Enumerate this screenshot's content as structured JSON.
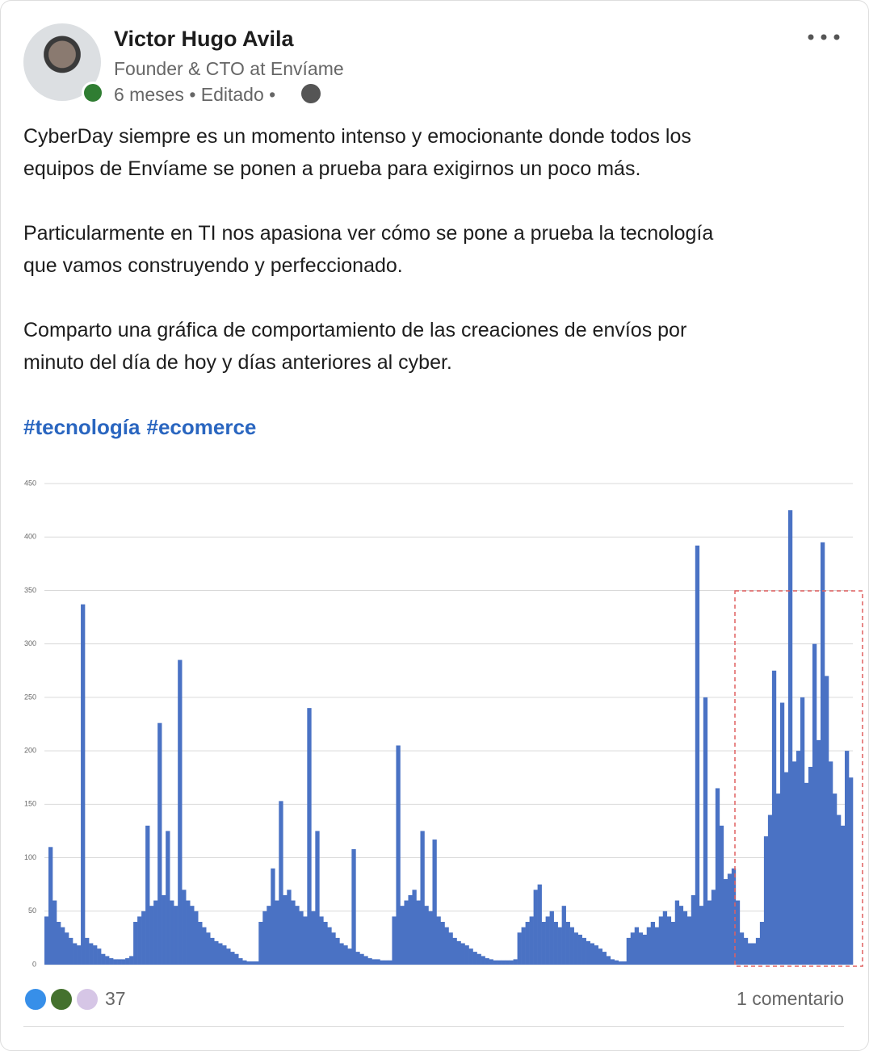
{
  "post": {
    "author": "Victor Hugo Avila",
    "headline": "Founder & CTO at Envíame",
    "meta": "6 meses • Editado •",
    "paragraphs": [
      [
        "CyberDay siempre es un momento intenso y emocionante donde todos los",
        "equipos de Envíame se ponen a prueba para exigirnos un poco más."
      ],
      [
        "Particularmente en TI nos apasiona ver cómo se pone a prueba la tecnología",
        "que vamos construyendo y perfeccionado."
      ],
      [
        "Comparto una gráfica de comportamiento de las creaciones de envíos por",
        "minuto del día de hoy y días anteriores al cyber."
      ]
    ],
    "hashtags": [
      "#tecnología",
      "#ecomerce"
    ],
    "reactions": "37",
    "comments": "1 comentario"
  },
  "chart_data": {
    "type": "bar",
    "color": "#4a72c4",
    "grid": true,
    "ylim": [
      0,
      450
    ],
    "yticks": [
      0,
      50,
      100,
      150,
      200,
      250,
      300,
      350,
      400,
      450
    ],
    "values": [
      45,
      110,
      60,
      40,
      35,
      30,
      25,
      20,
      18,
      337,
      25,
      20,
      18,
      15,
      10,
      8,
      6,
      5,
      5,
      5,
      6,
      8,
      40,
      45,
      50,
      130,
      55,
      60,
      226,
      65,
      125,
      60,
      55,
      285,
      70,
      60,
      55,
      50,
      40,
      35,
      30,
      25,
      22,
      20,
      18,
      15,
      12,
      10,
      6,
      4,
      3,
      3,
      3,
      40,
      50,
      55,
      90,
      60,
      153,
      65,
      70,
      60,
      55,
      50,
      45,
      240,
      50,
      125,
      45,
      40,
      35,
      30,
      25,
      20,
      18,
      15,
      108,
      12,
      10,
      8,
      6,
      5,
      5,
      4,
      4,
      4,
      45,
      205,
      55,
      60,
      65,
      70,
      60,
      125,
      55,
      50,
      117,
      45,
      40,
      35,
      30,
      25,
      22,
      20,
      18,
      15,
      12,
      10,
      8,
      6,
      5,
      4,
      4,
      4,
      4,
      4,
      5,
      30,
      35,
      40,
      45,
      70,
      75,
      40,
      45,
      50,
      40,
      35,
      55,
      40,
      35,
      30,
      28,
      25,
      22,
      20,
      18,
      15,
      12,
      8,
      5,
      4,
      3,
      3,
      25,
      30,
      35,
      30,
      28,
      35,
      40,
      35,
      45,
      50,
      45,
      40,
      60,
      55,
      50,
      45,
      65,
      392,
      55,
      250,
      60,
      70,
      165,
      130,
      80,
      85,
      90,
      60,
      30,
      25,
      20,
      20,
      25,
      40,
      120,
      140,
      275,
      160,
      245,
      180,
      425,
      190,
      200,
      250,
      170,
      185,
      300,
      210,
      395,
      270,
      190,
      160,
      140,
      130,
      200,
      175
    ]
  }
}
